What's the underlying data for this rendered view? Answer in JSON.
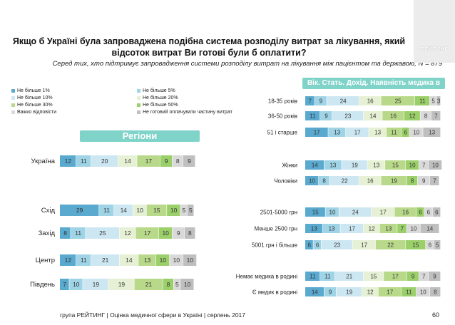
{
  "title_line1": "Якщо б Україні була запроваджена подібна система розподілу витрат за лікування, який",
  "title_line2": "відсоток витрат Ви готові були б оплатити?",
  "subtitle": "Серед тих, хто підтримує запровадження системи розподілу витрат на лікування між пацієнтом та державою, N = 879",
  "logo_text": "РЕЙТИНГ",
  "footer": "група РЕЙТИНГ  |  Оцінка медичної сфери в Україні  |  серпень 2017",
  "page_number": "60",
  "colors": {
    "header_bg": "#7fd3c9",
    "series": [
      "#5aa9cf",
      "#9fd3e6",
      "#cde7f2",
      "#e6f0d4",
      "#b9d98a",
      "#9bcf6a",
      "#d9d9d9",
      "#bfbfbf"
    ]
  },
  "chart_data": [
    {
      "type": "bar",
      "orientation": "horizontal",
      "stacked": true,
      "header": "Регіони",
      "categories": [
        "Україна",
        "Схід",
        "Захід",
        "Центр",
        "Південь"
      ],
      "series": [
        {
          "name": "Не більше 1%",
          "values": [
            12,
            29,
            8,
            12,
            7
          ]
        },
        {
          "name": "Не більше 5%",
          "values": [
            11,
            11,
            11,
            11,
            10
          ]
        },
        {
          "name": "Не більше 10%",
          "values": [
            20,
            14,
            25,
            21,
            19
          ]
        },
        {
          "name": "Не більше 20%",
          "values": [
            14,
            10,
            12,
            14,
            19
          ]
        },
        {
          "name": "Не більше 30%",
          "values": [
            17,
            15,
            17,
            13,
            21
          ]
        },
        {
          "name": "Не більше 50%",
          "values": [
            9,
            10,
            10,
            10,
            8
          ]
        },
        {
          "name": "Важко відповісти",
          "values": [
            8,
            5,
            9,
            10,
            5
          ]
        },
        {
          "name": "Не готовий оплачувати частину витрат",
          "values": [
            9,
            5,
            8,
            10,
            10
          ]
        }
      ]
    },
    {
      "type": "bar",
      "orientation": "horizontal",
      "stacked": true,
      "header": "Вік. Стать. Дохід. Наявність медика в родині",
      "categories": [
        "18-35 років",
        "36-50 років",
        "51 і старше",
        "Жінки",
        "Чоловіки",
        "2501-5000 грн",
        "Менше 2500 грн",
        "5001 грн і більше",
        "Немає медика в родині",
        "Є медик в родині"
      ],
      "series": [
        {
          "name": "Не більше 1%",
          "values": [
            7,
            11,
            17,
            14,
            10,
            15,
            13,
            6,
            11,
            14
          ]
        },
        {
          "name": "Не більше 5%",
          "values": [
            9,
            9,
            13,
            13,
            8,
            10,
            13,
            6,
            11,
            9
          ]
        },
        {
          "name": "Не більше 10%",
          "values": [
            24,
            23,
            17,
            19,
            22,
            24,
            17,
            23,
            21,
            19
          ]
        },
        {
          "name": "Не більше 20%",
          "values": [
            16,
            14,
            13,
            13,
            16,
            17,
            12,
            17,
            15,
            12
          ]
        },
        {
          "name": "Не більше 30%",
          "values": [
            25,
            16,
            11,
            15,
            19,
            16,
            13,
            22,
            17,
            17
          ]
        },
        {
          "name": "Не більше 50%",
          "values": [
            11,
            12,
            6,
            10,
            8,
            6,
            7,
            15,
            9,
            11
          ]
        },
        {
          "name": "Важко відповісти",
          "values": [
            5,
            8,
            10,
            7,
            9,
            6,
            10,
            6,
            7,
            10
          ]
        },
        {
          "name": "Не готовий оплачувати частину витрат",
          "values": [
            3,
            7,
            13,
            10,
            7,
            6,
            14,
            5,
            9,
            8
          ]
        }
      ]
    }
  ]
}
